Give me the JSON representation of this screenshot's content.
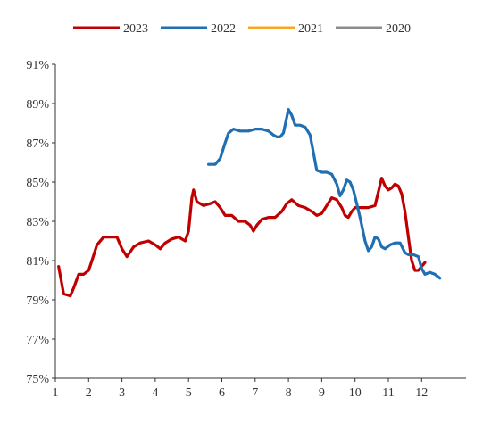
{
  "chart_data": {
    "type": "line",
    "title": "",
    "xlabel": "",
    "ylabel": "",
    "xlim": [
      1,
      12.8
    ],
    "ylim": [
      75,
      91
    ],
    "x_ticks": [
      "1",
      "2",
      "3",
      "4",
      "5",
      "6",
      "7",
      "8",
      "9",
      "10",
      "11",
      "12"
    ],
    "y_ticks": [
      "75%",
      "77%",
      "79%",
      "81%",
      "83%",
      "85%",
      "87%",
      "89%",
      "91%"
    ],
    "grid": false,
    "legend_position": "top-center",
    "series": [
      {
        "name": "2023",
        "color": "#c00000",
        "points": [
          [
            1.1,
            80.7
          ],
          [
            1.25,
            79.3
          ],
          [
            1.45,
            79.2
          ],
          [
            1.55,
            79.6
          ],
          [
            1.7,
            80.3
          ],
          [
            1.85,
            80.3
          ],
          [
            2.0,
            80.5
          ],
          [
            2.1,
            81.0
          ],
          [
            2.25,
            81.8
          ],
          [
            2.45,
            82.2
          ],
          [
            2.65,
            82.2
          ],
          [
            2.85,
            82.2
          ],
          [
            3.0,
            81.6
          ],
          [
            3.15,
            81.2
          ],
          [
            3.35,
            81.7
          ],
          [
            3.55,
            81.9
          ],
          [
            3.8,
            82.0
          ],
          [
            4.0,
            81.8
          ],
          [
            4.15,
            81.6
          ],
          [
            4.3,
            81.9
          ],
          [
            4.5,
            82.1
          ],
          [
            4.7,
            82.2
          ],
          [
            4.9,
            82.0
          ],
          [
            5.0,
            82.5
          ],
          [
            5.1,
            84.2
          ],
          [
            5.15,
            84.6
          ],
          [
            5.25,
            84.0
          ],
          [
            5.45,
            83.8
          ],
          [
            5.65,
            83.9
          ],
          [
            5.8,
            84.0
          ],
          [
            5.95,
            83.7
          ],
          [
            6.1,
            83.3
          ],
          [
            6.3,
            83.3
          ],
          [
            6.5,
            83.0
          ],
          [
            6.7,
            83.0
          ],
          [
            6.85,
            82.8
          ],
          [
            6.95,
            82.5
          ],
          [
            7.05,
            82.8
          ],
          [
            7.2,
            83.1
          ],
          [
            7.4,
            83.2
          ],
          [
            7.6,
            83.2
          ],
          [
            7.8,
            83.5
          ],
          [
            7.95,
            83.9
          ],
          [
            8.1,
            84.1
          ],
          [
            8.3,
            83.8
          ],
          [
            8.5,
            83.7
          ],
          [
            8.7,
            83.5
          ],
          [
            8.85,
            83.3
          ],
          [
            9.0,
            83.4
          ],
          [
            9.15,
            83.8
          ],
          [
            9.3,
            84.2
          ],
          [
            9.45,
            84.1
          ],
          [
            9.6,
            83.7
          ],
          [
            9.7,
            83.3
          ],
          [
            9.8,
            83.2
          ],
          [
            9.9,
            83.5
          ],
          [
            10.0,
            83.7
          ],
          [
            10.2,
            83.7
          ],
          [
            10.4,
            83.7
          ],
          [
            10.6,
            83.8
          ],
          [
            10.7,
            84.5
          ],
          [
            10.8,
            85.2
          ],
          [
            10.9,
            84.8
          ],
          [
            11.0,
            84.6
          ],
          [
            11.1,
            84.7
          ],
          [
            11.2,
            84.9
          ],
          [
            11.3,
            84.8
          ],
          [
            11.4,
            84.4
          ],
          [
            11.5,
            83.5
          ],
          [
            11.6,
            82.2
          ],
          [
            11.7,
            81.0
          ],
          [
            11.8,
            80.5
          ],
          [
            11.9,
            80.5
          ],
          [
            12.0,
            80.7
          ],
          [
            12.1,
            80.9
          ]
        ]
      },
      {
        "name": "2022",
        "color": "#1f6fb2",
        "points": [
          [
            5.6,
            85.9
          ],
          [
            5.8,
            85.9
          ],
          [
            5.95,
            86.2
          ],
          [
            6.1,
            87.0
          ],
          [
            6.2,
            87.5
          ],
          [
            6.35,
            87.7
          ],
          [
            6.55,
            87.6
          ],
          [
            6.8,
            87.6
          ],
          [
            7.0,
            87.7
          ],
          [
            7.2,
            87.7
          ],
          [
            7.4,
            87.6
          ],
          [
            7.55,
            87.4
          ],
          [
            7.65,
            87.3
          ],
          [
            7.75,
            87.3
          ],
          [
            7.85,
            87.5
          ],
          [
            7.95,
            88.3
          ],
          [
            8.0,
            88.7
          ],
          [
            8.1,
            88.4
          ],
          [
            8.2,
            87.9
          ],
          [
            8.35,
            87.9
          ],
          [
            8.5,
            87.8
          ],
          [
            8.65,
            87.4
          ],
          [
            8.75,
            86.5
          ],
          [
            8.85,
            85.6
          ],
          [
            9.0,
            85.5
          ],
          [
            9.15,
            85.5
          ],
          [
            9.3,
            85.4
          ],
          [
            9.45,
            84.9
          ],
          [
            9.55,
            84.3
          ],
          [
            9.65,
            84.6
          ],
          [
            9.75,
            85.1
          ],
          [
            9.85,
            85.0
          ],
          [
            9.95,
            84.6
          ],
          [
            10.05,
            83.9
          ],
          [
            10.15,
            83.2
          ],
          [
            10.3,
            82.0
          ],
          [
            10.4,
            81.5
          ],
          [
            10.5,
            81.7
          ],
          [
            10.6,
            82.2
          ],
          [
            10.7,
            82.1
          ],
          [
            10.8,
            81.7
          ],
          [
            10.9,
            81.6
          ],
          [
            11.05,
            81.8
          ],
          [
            11.2,
            81.9
          ],
          [
            11.35,
            81.9
          ],
          [
            11.5,
            81.4
          ],
          [
            11.6,
            81.3
          ],
          [
            11.75,
            81.3
          ],
          [
            11.9,
            81.2
          ],
          [
            12.0,
            80.6
          ],
          [
            12.1,
            80.3
          ],
          [
            12.25,
            80.4
          ],
          [
            12.4,
            80.3
          ],
          [
            12.55,
            80.1
          ]
        ]
      },
      {
        "name": "2021",
        "color": "#f5a623",
        "points": []
      },
      {
        "name": "2020",
        "color": "#8c8c8c",
        "points": []
      }
    ]
  }
}
